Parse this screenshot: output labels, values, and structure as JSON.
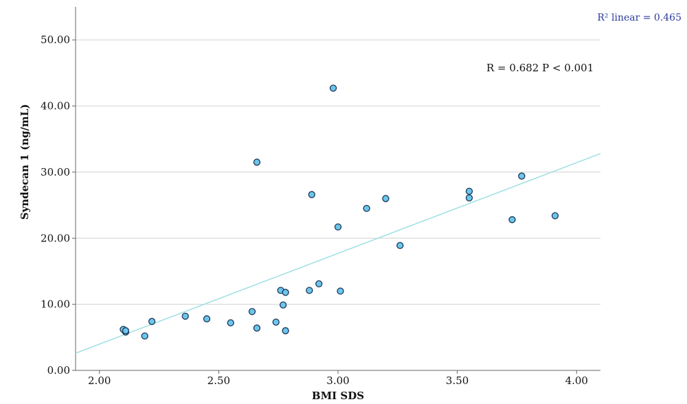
{
  "chart_data": {
    "type": "scatter",
    "xlabel": "BMI SDS",
    "ylabel": "Syndecan 1 (ng/mL)",
    "xlim": [
      1.9,
      4.1
    ],
    "ylim": [
      0,
      55
    ],
    "x_ticks": [
      "2.00",
      "2.50",
      "3.00",
      "3.50",
      "4.00"
    ],
    "y_ticks": [
      "0.00",
      "10.00",
      "20.00",
      "30.00",
      "40.00",
      "50.00"
    ],
    "grid": "horizontal",
    "annotation": "R = 0.682 P < 0.001",
    "fit_label": "R² linear = 0.465",
    "fit_line": {
      "x": [
        1.9,
        4.1
      ],
      "y": [
        2.6,
        32.8
      ]
    },
    "colors": {
      "point_fill": "#6cc6ec",
      "point_stroke": "#1c3557",
      "fit_line": "#9edfe3",
      "grid": "#d9d9d9",
      "axis": "#666666",
      "fit_label": "#2b3a9c"
    },
    "points": [
      {
        "x": 2.1,
        "y": 6.2
      },
      {
        "x": 2.11,
        "y": 5.8
      },
      {
        "x": 2.11,
        "y": 6.0
      },
      {
        "x": 2.19,
        "y": 5.2
      },
      {
        "x": 2.22,
        "y": 7.4
      },
      {
        "x": 2.36,
        "y": 8.2
      },
      {
        "x": 2.45,
        "y": 7.8
      },
      {
        "x": 2.55,
        "y": 7.2
      },
      {
        "x": 2.64,
        "y": 8.9
      },
      {
        "x": 2.66,
        "y": 31.5
      },
      {
        "x": 2.66,
        "y": 6.4
      },
      {
        "x": 2.74,
        "y": 7.3
      },
      {
        "x": 2.76,
        "y": 12.1
      },
      {
        "x": 2.77,
        "y": 9.9
      },
      {
        "x": 2.78,
        "y": 11.8
      },
      {
        "x": 2.78,
        "y": 6.0
      },
      {
        "x": 2.88,
        "y": 12.1
      },
      {
        "x": 2.89,
        "y": 26.6
      },
      {
        "x": 2.92,
        "y": 13.1
      },
      {
        "x": 2.98,
        "y": 42.7
      },
      {
        "x": 3.0,
        "y": 21.7
      },
      {
        "x": 3.01,
        "y": 12.0
      },
      {
        "x": 3.12,
        "y": 24.5
      },
      {
        "x": 3.2,
        "y": 26.0
      },
      {
        "x": 3.26,
        "y": 18.9
      },
      {
        "x": 3.55,
        "y": 27.1
      },
      {
        "x": 3.55,
        "y": 26.1
      },
      {
        "x": 3.73,
        "y": 22.8
      },
      {
        "x": 3.77,
        "y": 29.4
      },
      {
        "x": 3.91,
        "y": 23.4
      }
    ]
  }
}
